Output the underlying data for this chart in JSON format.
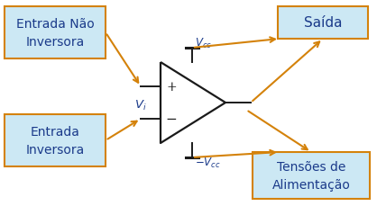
{
  "bg_color": "#ffffff",
  "box_fill": "#cce8f4",
  "box_edge": "#d4820a",
  "arrow_color": "#d4820a",
  "opamp_color": "#1a1a1a",
  "text_color": "#1a3a8a",
  "label_top_left": "Entrada Não\nInversora",
  "label_bot_left": "Entrada\nInversora",
  "label_top_right": "Saída",
  "label_bot_right": "Tensões de\nAlimentação",
  "fig_width": 4.18,
  "fig_height": 2.3,
  "dpi": 100
}
